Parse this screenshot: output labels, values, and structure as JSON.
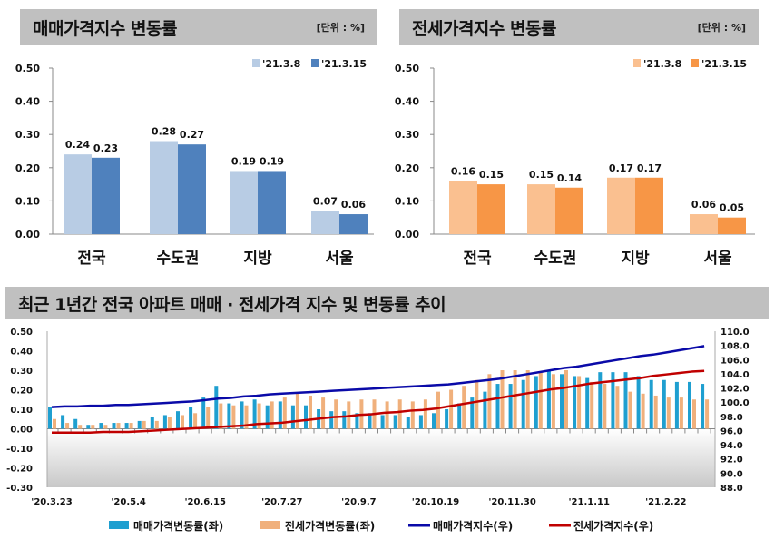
{
  "panels": [
    {
      "title": "매매가격지수 변동률",
      "unit": "[단위 : %]"
    },
    {
      "title": "전세가격지수 변동률",
      "unit": "[단위 : %]"
    },
    {
      "title": "최근 1년간 전국 아파트 매매 · 전세가격 지수 및 변동률 추이"
    }
  ],
  "chart_data": [
    {
      "type": "bar",
      "title": "매매가격지수 변동률",
      "unit": "[단위 : %]",
      "categories": [
        "전국",
        "수도권",
        "지방",
        "서울"
      ],
      "series": [
        {
          "name": "'21.3.8",
          "values": [
            0.24,
            0.28,
            0.19,
            0.07
          ],
          "color": "#b8cce4"
        },
        {
          "name": "'21.3.15",
          "values": [
            0.23,
            0.27,
            0.19,
            0.06
          ],
          "color": "#4f81bd"
        }
      ],
      "ylim": [
        0,
        0.5
      ],
      "yticks": [
        "0.50",
        "0.40",
        "0.30",
        "0.20",
        "0.10",
        "0.00"
      ],
      "legend": "top-right",
      "grid": false
    },
    {
      "type": "bar",
      "title": "전세가격지수 변동률",
      "unit": "[단위 : %]",
      "categories": [
        "전국",
        "수도권",
        "지방",
        "서울"
      ],
      "series": [
        {
          "name": "'21.3.8",
          "values": [
            0.16,
            0.15,
            0.17,
            0.06
          ],
          "color": "#fac090"
        },
        {
          "name": "'21.3.15",
          "values": [
            0.15,
            0.14,
            0.17,
            0.05
          ],
          "color": "#f79646"
        }
      ],
      "ylim": [
        0,
        0.5
      ],
      "yticks": [
        "0.50",
        "0.40",
        "0.30",
        "0.20",
        "0.10",
        "0.00"
      ],
      "legend": "top-right",
      "grid": false
    },
    {
      "type": "bar+line",
      "title": "최근 1년간 전국 아파트 매매 · 전세가격 지수 및 변동률 추이",
      "xticks": [
        "'20.3.23",
        "'20.5.4",
        "'20.6.15",
        "'20.7.27",
        "'20.9.7",
        "'20.10.19",
        "'20.11.30",
        "'21.1.11",
        "'21.2.22"
      ],
      "ylim_left": [
        -0.3,
        0.5
      ],
      "yticks_left": [
        "0.50",
        "0.40",
        "0.30",
        "0.20",
        "0.10",
        "0.00",
        "-0.10",
        "-0.20",
        "-0.30"
      ],
      "ylim_right": [
        88,
        110
      ],
      "yticks_right": [
        "110.0",
        "108.0",
        "106.0",
        "104.0",
        "102.0",
        "100.0",
        "98.0",
        "96.0",
        "94.0",
        "92.0",
        "90.0",
        "88.0"
      ],
      "legend": "bottom",
      "series": [
        {
          "name": "매매가격변동률(좌)",
          "type": "bar",
          "axis": "left",
          "color": "#1f9fd0",
          "values": [
            0.11,
            0.07,
            0.05,
            0.02,
            0.03,
            0.03,
            0.03,
            0.04,
            0.06,
            0.07,
            0.09,
            0.11,
            0.16,
            0.22,
            0.13,
            0.14,
            0.15,
            0.12,
            0.14,
            0.12,
            0.12,
            0.1,
            0.09,
            0.09,
            0.08,
            0.08,
            0.07,
            0.07,
            0.06,
            0.07,
            0.08,
            0.1,
            0.13,
            0.16,
            0.19,
            0.23,
            0.23,
            0.25,
            0.27,
            0.3,
            0.28,
            0.27,
            0.26,
            0.29,
            0.29,
            0.29,
            0.27,
            0.25,
            0.25,
            0.24,
            0.24,
            0.23
          ]
        },
        {
          "name": "전세가격변동률(좌)",
          "type": "bar",
          "axis": "left",
          "color": "#f0b07c",
          "values": [
            0.05,
            0.03,
            0.02,
            0.02,
            0.02,
            0.03,
            0.03,
            0.04,
            0.04,
            0.06,
            0.07,
            0.08,
            0.11,
            0.13,
            0.12,
            0.12,
            0.13,
            0.14,
            0.16,
            0.18,
            0.17,
            0.16,
            0.15,
            0.14,
            0.15,
            0.15,
            0.14,
            0.15,
            0.14,
            0.15,
            0.19,
            0.2,
            0.22,
            0.25,
            0.28,
            0.3,
            0.3,
            0.3,
            0.29,
            0.28,
            0.3,
            0.27,
            0.24,
            0.23,
            0.22,
            0.19,
            0.18,
            0.17,
            0.16,
            0.16,
            0.15,
            0.15
          ]
        },
        {
          "name": "매매가격지수(우)",
          "type": "line",
          "axis": "right",
          "color": "#0a0aa8",
          "values": [
            99.3,
            99.4,
            99.4,
            99.5,
            99.5,
            99.6,
            99.6,
            99.7,
            99.8,
            99.9,
            100.0,
            100.1,
            100.3,
            100.5,
            100.6,
            100.8,
            100.9,
            101.1,
            101.2,
            101.3,
            101.4,
            101.5,
            101.6,
            101.7,
            101.8,
            101.9,
            102.0,
            102.1,
            102.2,
            102.3,
            102.4,
            102.5,
            102.7,
            102.9,
            103.1,
            103.3,
            103.6,
            103.9,
            104.2,
            104.5,
            104.8,
            105.0,
            105.3,
            105.6,
            105.9,
            106.2,
            106.5,
            106.7,
            107.0,
            107.3,
            107.6,
            107.9
          ]
        },
        {
          "name": "전세가격지수(우)",
          "type": "line",
          "axis": "right",
          "color": "#c00000",
          "values": [
            95.7,
            95.7,
            95.7,
            95.7,
            95.8,
            95.8,
            95.8,
            95.9,
            96.0,
            96.1,
            96.2,
            96.3,
            96.4,
            96.5,
            96.6,
            96.7,
            96.9,
            97.0,
            97.1,
            97.3,
            97.5,
            97.7,
            97.9,
            98.0,
            98.2,
            98.3,
            98.5,
            98.6,
            98.8,
            98.9,
            99.1,
            99.4,
            99.7,
            100.0,
            100.3,
            100.6,
            100.9,
            101.2,
            101.5,
            101.8,
            102.0,
            102.3,
            102.6,
            102.8,
            103.0,
            103.2,
            103.4,
            103.7,
            103.9,
            104.1,
            104.3,
            104.4
          ]
        }
      ]
    }
  ]
}
